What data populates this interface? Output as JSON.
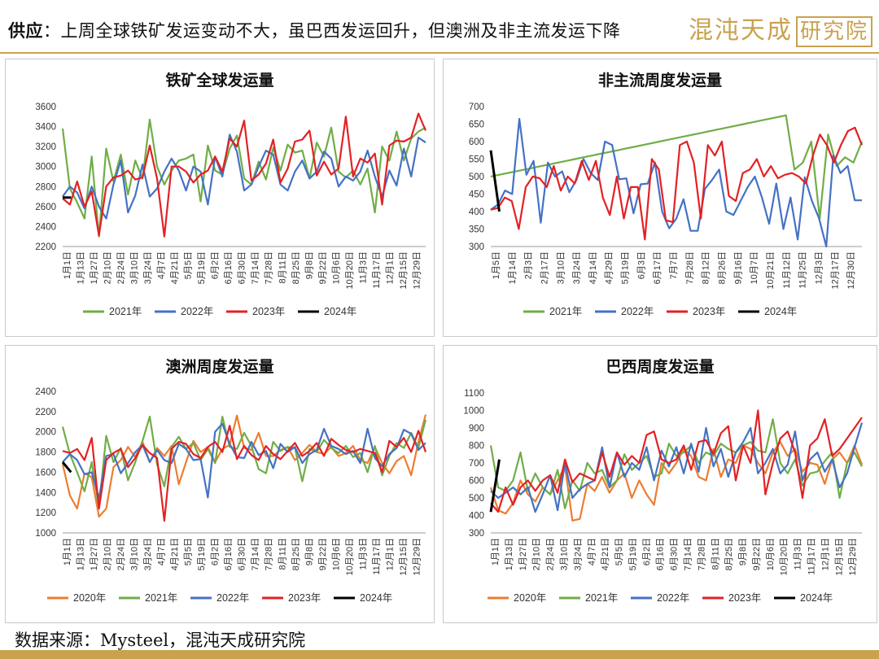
{
  "header": {
    "label": "供应",
    "text": "：上周全球铁矿发运变动不大，虽巴西发运回升，但澳洲及非主流发运下降",
    "logo_main": "混沌天成",
    "logo_boxed": "研究院"
  },
  "footer": {
    "source": "数据来源：Mysteel，混沌天成研究院"
  },
  "colors": {
    "2020年": "#ed7d31",
    "2021年": "#70ad47",
    "2022年": "#4472c4",
    "2023年": "#e32124",
    "2024年": "#000000",
    "accent": "#c9a24f"
  },
  "chart_data": [
    {
      "type": "line",
      "title": "铁矿全球发运量",
      "ylim": [
        2200,
        3600
      ],
      "yticks": [
        2200,
        2400,
        2600,
        2800,
        3000,
        3200,
        3400,
        3600
      ],
      "xticks": [
        "1月1日",
        "1月13日",
        "1月27日",
        "2月10日",
        "2月24日",
        "3月10日",
        "3月24日",
        "4月7日",
        "4月21日",
        "5月5日",
        "5月19日",
        "6月2日",
        "6月16日",
        "6月30日",
        "7月14日",
        "7月28日",
        "8月11日",
        "8月25日",
        "9月8日",
        "9月22日",
        "10月6日",
        "10月20日",
        "11月3日",
        "11月17日",
        "12月1日",
        "12月15日",
        "12月29日"
      ],
      "x_max": 52,
      "legend": [
        "2021年",
        "2022年",
        "2023年",
        "2024年"
      ],
      "grid": false,
      "series": [
        {
          "name": "2021年",
          "values": [
            3380,
            2780,
            2640,
            2480,
            3100,
            2300,
            3180,
            2850,
            3120,
            2720,
            3060,
            2880,
            3470,
            3000,
            2820,
            2960,
            3060,
            3080,
            3120,
            2650,
            3210,
            2960,
            2920,
            3180,
            3310,
            2880,
            2820,
            3050,
            2870,
            3190,
            2960,
            3220,
            3140,
            3160,
            2880,
            3240,
            3100,
            3390,
            2950,
            2890,
            2960,
            2820,
            2980,
            2540,
            3200,
            3060,
            3350,
            3060,
            3280,
            3350,
            3390
          ]
        },
        {
          "name": "2022年",
          "values": [
            2700,
            2800,
            2740,
            2580,
            2800,
            2600,
            2480,
            2820,
            3060,
            2540,
            2710,
            3020,
            2700,
            2780,
            2950,
            3080,
            2960,
            2760,
            3000,
            2950,
            2620,
            3100,
            2900,
            3320,
            3150,
            2760,
            2820,
            3000,
            3160,
            3120,
            2820,
            2760,
            2950,
            3060,
            2880,
            2950,
            3150,
            3080,
            2800,
            2900,
            2860,
            2950,
            3160,
            2900,
            2700,
            2960,
            2810,
            3180,
            2900,
            3290,
            3240
          ]
        },
        {
          "name": "2023年",
          "values": [
            2680,
            2620,
            2850,
            2600,
            2750,
            2310,
            2800,
            2890,
            2910,
            2960,
            2870,
            2890,
            3210,
            2880,
            2300,
            3000,
            3000,
            2950,
            2840,
            2920,
            2960,
            3100,
            2950,
            3280,
            3200,
            3460,
            2860,
            2920,
            3030,
            3270,
            2840,
            2980,
            3250,
            3270,
            3360,
            2910,
            3050,
            2920,
            2980,
            3500,
            2900,
            3080,
            3040,
            3130,
            2620,
            3210,
            3260,
            3250,
            3290,
            3530,
            3360
          ]
        },
        {
          "name": "2024年",
          "values": [
            2690,
            2690
          ]
        }
      ]
    },
    {
      "type": "line",
      "title": "非主流周度发运量",
      "ylim": [
        300,
        700
      ],
      "yticks": [
        300,
        350,
        400,
        450,
        500,
        550,
        600,
        650,
        700
      ],
      "xticks": [
        "1月5日",
        "1月14日",
        "2月3日",
        "2月17日",
        "3月10日",
        "3月24日",
        "4月14日",
        "4月29日",
        "5月19日",
        "6月3日",
        "6月17日",
        "7月7日",
        "7月28日",
        "8月12日",
        "8月26日",
        "9月16日",
        "10月7日",
        "10月21日",
        "11月12日",
        "11月25日",
        "12月3日",
        "12月17日",
        "12月30日"
      ],
      "x_max": 52,
      "legend": [
        "2021年",
        "2022年",
        "2023年",
        "2024年"
      ],
      "grid": false,
      "series": [
        {
          "name": "2021年",
          "values": [
            500,
            505,
            510,
            515,
            520,
            525,
            530,
            535,
            540,
            545,
            550,
            555,
            560,
            565,
            570,
            575,
            580,
            585,
            590,
            595,
            600,
            605,
            610,
            615,
            620,
            625,
            630,
            635,
            640,
            645,
            650,
            655,
            660,
            665,
            670,
            675,
            520,
            540,
            600,
            380,
            620,
            530,
            555,
            540,
            600
          ]
        },
        {
          "name": "2022年",
          "values": [
            405,
            420,
            460,
            450,
            665,
            505,
            545,
            368,
            540,
            500,
            515,
            455,
            490,
            550,
            510,
            490,
            600,
            590,
            492,
            495,
            395,
            478,
            480,
            540,
            400,
            352,
            380,
            435,
            345,
            345,
            465,
            490,
            520,
            400,
            390,
            430,
            470,
            500,
            440,
            365,
            480,
            350,
            440,
            320,
            498,
            430,
            380,
            300,
            560,
            510,
            530,
            432,
            432
          ]
        },
        {
          "name": "2023年",
          "values": [
            405,
            410,
            440,
            430,
            350,
            470,
            500,
            495,
            470,
            530,
            460,
            500,
            480,
            545,
            490,
            545,
            440,
            390,
            500,
            380,
            470,
            470,
            320,
            550,
            520,
            375,
            370,
            590,
            600,
            540,
            380,
            590,
            560,
            600,
            445,
            430,
            510,
            520,
            550,
            500,
            530,
            495,
            505,
            510,
            500,
            480,
            560,
            620,
            590,
            540,
            590,
            630,
            640,
            590
          ]
        },
        {
          "name": "2024年",
          "values": [
            575,
            400
          ]
        }
      ]
    },
    {
      "type": "line",
      "title": "澳洲周度发运量",
      "ylim": [
        1000,
        2400
      ],
      "yticks": [
        1000,
        1200,
        1400,
        1600,
        1800,
        2000,
        2200,
        2400
      ],
      "xticks": [
        "1月1日",
        "1月13日",
        "1月27日",
        "2月10日",
        "2月24日",
        "3月10日",
        "3月24日",
        "4月7日",
        "4月21日",
        "5月5日",
        "5月19日",
        "6月2日",
        "6月16日",
        "6月30日",
        "7月14日",
        "7月28日",
        "8月11日",
        "8月25日",
        "9月8日",
        "9月22日",
        "10月6日",
        "10月20日",
        "11月3日",
        "11月17日",
        "12月1日",
        "12月15日",
        "12月29日"
      ],
      "x_max": 52,
      "legend": [
        "2020年",
        "2021年",
        "2022年",
        "2023年",
        "2024年"
      ],
      "grid": false,
      "series": [
        {
          "name": "2020年",
          "values": [
            1680,
            1370,
            1240,
            1590,
            1550,
            1160,
            1240,
            1650,
            1720,
            1850,
            1750,
            1900,
            1700,
            1840,
            1760,
            1860,
            1480,
            1700,
            1910,
            1800,
            1850,
            1700,
            1830,
            1870,
            2160,
            1840,
            1820,
            1990,
            1760,
            1760,
            1820,
            1850,
            1720,
            1790,
            1870,
            1800,
            1780,
            1850,
            1760,
            1790,
            1860,
            1720,
            1690,
            1850,
            1690,
            1590,
            1710,
            1760,
            1570,
            1900,
            2170
          ]
        },
        {
          "name": "2021年",
          "values": [
            2050,
            1780,
            1600,
            1410,
            1700,
            1250,
            1960,
            1700,
            1840,
            1520,
            1700,
            1910,
            2150,
            1680,
            1460,
            1850,
            1950,
            1830,
            1890,
            1720,
            1830,
            1690,
            2150,
            1850,
            1830,
            1990,
            1860,
            1630,
            1590,
            1900,
            1810,
            1850,
            1840,
            1510,
            1830,
            1800,
            1920,
            1840,
            1790,
            1860,
            1750,
            1790,
            1600,
            1860,
            1570,
            1760,
            1890,
            1840,
            1990,
            1840,
            2120
          ]
        },
        {
          "name": "2022年",
          "values": [
            1700,
            1780,
            1720,
            1580,
            1600,
            1340,
            1760,
            1780,
            1590,
            1690,
            1800,
            1870,
            1700,
            1820,
            1720,
            1690,
            1880,
            1830,
            1720,
            1730,
            1350,
            2000,
            2080,
            1880,
            1750,
            1740,
            1900,
            1770,
            1810,
            1640,
            1880,
            1800,
            1850,
            1690,
            1780,
            1820,
            2030,
            1860,
            1830,
            1780,
            1810,
            1690,
            2030,
            1740,
            1660,
            1780,
            1840,
            2020,
            1980,
            1820,
            1890
          ]
        },
        {
          "name": "2023年",
          "values": [
            1810,
            1790,
            1830,
            1720,
            1940,
            1240,
            1720,
            1790,
            1830,
            1650,
            1740,
            1870,
            1790,
            1740,
            1120,
            1830,
            1900,
            1880,
            1780,
            1740,
            1850,
            1900,
            1800,
            2060,
            1730,
            1860,
            1770,
            1720,
            1860,
            1780,
            1730,
            1810,
            1890,
            1760,
            1810,
            1890,
            1760,
            1930,
            1870,
            1820,
            1800,
            1830,
            1810,
            1790,
            1600,
            1910,
            1850,
            1940,
            1800,
            2010,
            1800
          ]
        },
        {
          "name": "2024年",
          "values": [
            1700,
            1600
          ]
        }
      ]
    },
    {
      "type": "line",
      "title": "巴西周度发运量",
      "ylim": [
        300,
        1100
      ],
      "yticks": [
        300,
        400,
        500,
        600,
        700,
        800,
        900,
        1000,
        1100
      ],
      "xticks": [
        "1月1日",
        "1月13日",
        "1月27日",
        "2月10日",
        "2月24日",
        "3月10日",
        "3月24日",
        "4月7日",
        "4月21日",
        "5月5日",
        "5月19日",
        "6月2日",
        "6月16日",
        "6月30日",
        "7月14日",
        "7月28日",
        "8月11日",
        "8月25日",
        "9月8日",
        "9月22日",
        "10月6日",
        "10月20日",
        "11月3日",
        "11月17日",
        "12月1日",
        "12月15日",
        "12月29日"
      ],
      "x_max": 52,
      "legend": [
        "2020年",
        "2021年",
        "2022年",
        "2023年",
        "2024年"
      ],
      "grid": false,
      "series": [
        {
          "name": "2020年",
          "values": [
            560,
            430,
            410,
            470,
            600,
            520,
            480,
            560,
            520,
            600,
            680,
            370,
            380,
            580,
            540,
            620,
            530,
            600,
            640,
            500,
            600,
            520,
            460,
            700,
            640,
            700,
            780,
            740,
            620,
            600,
            780,
            620,
            720,
            700,
            800,
            780,
            700,
            640,
            760,
            820,
            740,
            780,
            650,
            700,
            690,
            580,
            720,
            760,
            700,
            800,
            690
          ]
        },
        {
          "name": "2021年",
          "values": [
            800,
            560,
            540,
            600,
            760,
            540,
            640,
            560,
            520,
            660,
            440,
            600,
            540,
            700,
            640,
            660,
            560,
            600,
            750,
            660,
            700,
            740,
            620,
            640,
            810,
            740,
            760,
            800,
            700,
            760,
            740,
            810,
            780,
            760,
            800,
            820,
            770,
            760,
            950,
            700,
            640,
            720,
            570,
            640,
            650,
            710,
            760,
            500,
            700,
            760,
            680
          ]
        },
        {
          "name": "2022年",
          "values": [
            540,
            500,
            530,
            560,
            520,
            560,
            420,
            520,
            630,
            430,
            700,
            500,
            550,
            580,
            600,
            790,
            560,
            760,
            620,
            700,
            660,
            790,
            600,
            770,
            680,
            790,
            640,
            810,
            650,
            900,
            680,
            780,
            620,
            760,
            820,
            900,
            640,
            700,
            780,
            640,
            690,
            880,
            600,
            720,
            760,
            650,
            720,
            560,
            640,
            790,
            930
          ]
        },
        {
          "name": "2023年",
          "values": [
            470,
            420,
            560,
            460,
            560,
            600,
            540,
            600,
            630,
            530,
            720,
            590,
            640,
            620,
            600,
            760,
            620,
            760,
            690,
            740,
            700,
            860,
            880,
            720,
            700,
            720,
            800,
            660,
            820,
            830,
            750,
            870,
            910,
            600,
            800,
            700,
            1000,
            520,
            700,
            840,
            880,
            760,
            500,
            800,
            840,
            950,
            740,
            780,
            840,
            900,
            960
          ]
        },
        {
          "name": "2024年",
          "values": [
            420,
            720
          ]
        }
      ]
    }
  ]
}
